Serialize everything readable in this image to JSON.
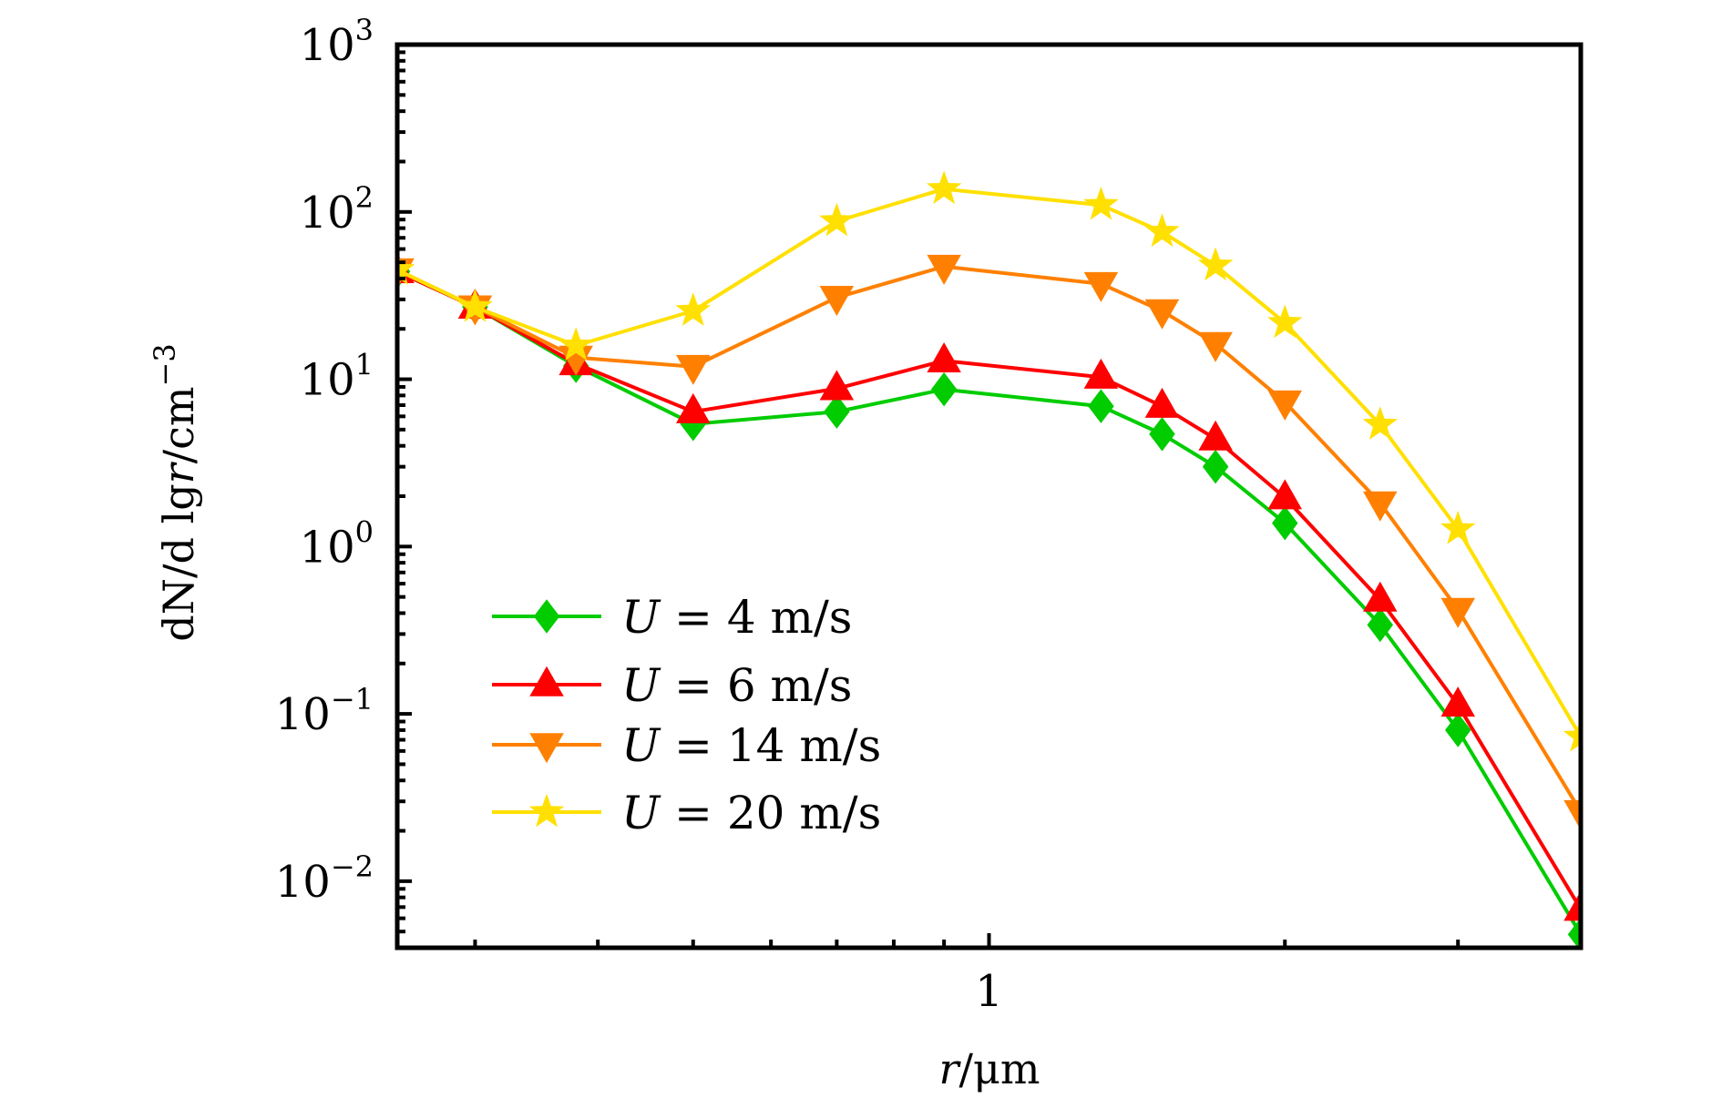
{
  "chart_data": {
    "type": "line",
    "xscale": "log",
    "yscale": "log",
    "xlabel": {
      "main": "r",
      "unit": "/μm"
    },
    "ylabel": {
      "main": "dN/d lg",
      "var": "r",
      "unit": "/cm",
      "exp": "−3"
    },
    "xlim": [
      0.25,
      4
    ],
    "ylim": [
      0.004,
      1000
    ],
    "x_tick_labels": [
      {
        "value": 1,
        "label": "1"
      }
    ],
    "y_tick_labels": [
      {
        "value": 1000,
        "base": "10",
        "exp": "3"
      },
      {
        "value": 100,
        "base": "10",
        "exp": "2"
      },
      {
        "value": 10,
        "base": "10",
        "exp": "1"
      },
      {
        "value": 1,
        "base": "10",
        "exp": "0"
      },
      {
        "value": 0.1,
        "base": "10",
        "exp": "−1"
      },
      {
        "value": 0.01,
        "base": "10",
        "exp": "−2"
      }
    ],
    "x": [
      0.25,
      0.3,
      0.38,
      0.5,
      0.7,
      0.9,
      1.3,
      1.5,
      1.7,
      2.0,
      2.5,
      3.0,
      4.0
    ],
    "series": [
      {
        "name": "U = 4 m/s",
        "legend": {
          "var": "U",
          "rest": " = 4 m/s"
        },
        "color": "#00cc00",
        "marker": "diamond",
        "values": [
          44,
          27,
          12.0,
          5.4,
          6.4,
          8.7,
          6.9,
          4.7,
          3.0,
          1.38,
          0.34,
          0.08,
          0.0048
        ]
      },
      {
        "name": "U = 6 m/s",
        "legend": {
          "var": "U",
          "rest": " = 6 m/s"
        },
        "color": "#ff0000",
        "marker": "triangle-up",
        "values": [
          44,
          27,
          12.4,
          6.4,
          8.8,
          12.9,
          10.3,
          6.9,
          4.4,
          1.96,
          0.48,
          0.113,
          0.0068
        ]
      },
      {
        "name": "U = 14 m/s",
        "legend": {
          "var": "U",
          "rest": " = 14 m/s"
        },
        "color": "#ff8000",
        "marker": "triangle-down",
        "values": [
          45,
          27,
          13.5,
          11.9,
          30.8,
          47.2,
          37.2,
          25.6,
          16.3,
          7.3,
          1.82,
          0.42,
          0.026
        ]
      },
      {
        "name": "U = 20 m/s",
        "legend": {
          "var": "U",
          "rest": " = 20 m/s"
        },
        "color": "#ffe000",
        "marker": "star",
        "values": [
          45,
          27,
          15.9,
          25.6,
          88,
          137,
          110,
          76,
          47.8,
          21.7,
          5.35,
          1.27,
          0.073
        ]
      }
    ],
    "legend_position": "lower-left",
    "grid": false
  }
}
